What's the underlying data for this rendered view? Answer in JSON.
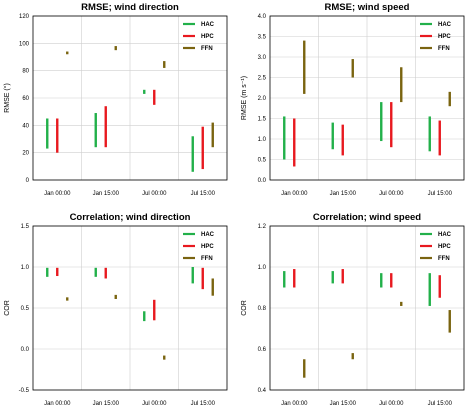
{
  "chart_data": [
    {
      "type": "range-bar",
      "title": "RMSE;  wind direction",
      "ylabel": "RMSE (°)",
      "ylim": [
        0,
        120
      ],
      "yticks": [
        "0",
        "20",
        "40",
        "60",
        "80",
        "100",
        "120"
      ],
      "categories": [
        "Jan 00:00",
        "Jan 15:00",
        "Jul 00:00",
        "Jul 15:00"
      ],
      "grid": true,
      "legend": "top-right",
      "series": [
        {
          "name": "HAC",
          "color": "#22b04a",
          "ranges": [
            [
              23,
              45
            ],
            [
              24,
              49
            ],
            [
              63,
              66
            ],
            [
              6,
              32
            ]
          ]
        },
        {
          "name": "HPC",
          "color": "#e8191f",
          "ranges": [
            [
              20,
              45
            ],
            [
              24,
              54
            ],
            [
              55,
              66
            ],
            [
              8,
              39
            ]
          ]
        },
        {
          "name": "FFN",
          "color": "#7a6410",
          "ranges": [
            [
              92,
              94
            ],
            [
              95,
              98
            ],
            [
              82,
              87
            ],
            [
              24,
              42
            ]
          ]
        }
      ]
    },
    {
      "type": "range-bar",
      "title": "RMSE;  wind speed",
      "ylabel": "RMSE (m s⁻¹)",
      "ylim": [
        0,
        4
      ],
      "yticks": [
        "0.0",
        "0.5",
        "1.0",
        "1.5",
        "2.0",
        "2.5",
        "3.0",
        "3.5",
        "4.0"
      ],
      "categories": [
        "Jan 00:00",
        "Jan 15:00",
        "Jul 00:00",
        "Jul 15:00"
      ],
      "grid": true,
      "legend": "top-right",
      "series": [
        {
          "name": "HAC",
          "color": "#22b04a",
          "ranges": [
            [
              0.5,
              1.55
            ],
            [
              0.75,
              1.4
            ],
            [
              0.95,
              1.9
            ],
            [
              0.7,
              1.55
            ]
          ]
        },
        {
          "name": "HPC",
          "color": "#e8191f",
          "ranges": [
            [
              0.33,
              1.5
            ],
            [
              0.6,
              1.35
            ],
            [
              0.8,
              1.9
            ],
            [
              0.6,
              1.45
            ]
          ]
        },
        {
          "name": "FFN",
          "color": "#7a6410",
          "ranges": [
            [
              2.1,
              3.4
            ],
            [
              2.5,
              2.95
            ],
            [
              1.9,
              2.75
            ],
            [
              1.8,
              2.15
            ]
          ]
        }
      ]
    },
    {
      "type": "range-bar",
      "title": "Correlation;  wind direction",
      "ylabel": "COR",
      "ylim": [
        -0.5,
        1.5
      ],
      "yticks": [
        "-0.5",
        "0.0",
        "0.5",
        "1.0",
        "1.5"
      ],
      "categories": [
        "Jan 00:00",
        "Jan 15:00",
        "Jul 00:00",
        "Jul 15:00"
      ],
      "grid": true,
      "legend": "top-right",
      "series": [
        {
          "name": "HAC",
          "color": "#22b04a",
          "ranges": [
            [
              0.88,
              0.99
            ],
            [
              0.88,
              0.99
            ],
            [
              0.34,
              0.46
            ],
            [
              0.8,
              1.0
            ]
          ]
        },
        {
          "name": "HPC",
          "color": "#e8191f",
          "ranges": [
            [
              0.89,
              0.99
            ],
            [
              0.86,
              0.99
            ],
            [
              0.35,
              0.6
            ],
            [
              0.73,
              0.99
            ]
          ]
        },
        {
          "name": "FFN",
          "color": "#7a6410",
          "ranges": [
            [
              0.59,
              0.63
            ],
            [
              0.61,
              0.66
            ],
            [
              -0.13,
              -0.08
            ],
            [
              0.65,
              0.86
            ]
          ]
        }
      ]
    },
    {
      "type": "range-bar",
      "title": "Correlation;  wind speed",
      "ylabel": "COR",
      "ylim": [
        0.4,
        1.2
      ],
      "yticks": [
        "0.4",
        "0.6",
        "0.8",
        "1.0",
        "1.2"
      ],
      "categories": [
        "Jan 00:00",
        "Jan 15:00",
        "Jul 00:00",
        "Jul 15:00"
      ],
      "grid": true,
      "legend": "top-right",
      "series": [
        {
          "name": "HAC",
          "color": "#22b04a",
          "ranges": [
            [
              0.9,
              0.98
            ],
            [
              0.92,
              0.98
            ],
            [
              0.9,
              0.97
            ],
            [
              0.81,
              0.97
            ]
          ]
        },
        {
          "name": "HPC",
          "color": "#e8191f",
          "ranges": [
            [
              0.9,
              0.99
            ],
            [
              0.92,
              0.99
            ],
            [
              0.9,
              0.97
            ],
            [
              0.85,
              0.96
            ]
          ]
        },
        {
          "name": "FFN",
          "color": "#7a6410",
          "ranges": [
            [
              0.46,
              0.55
            ],
            [
              0.55,
              0.58
            ],
            [
              0.81,
              0.83
            ],
            [
              0.68,
              0.79
            ]
          ]
        }
      ]
    }
  ]
}
